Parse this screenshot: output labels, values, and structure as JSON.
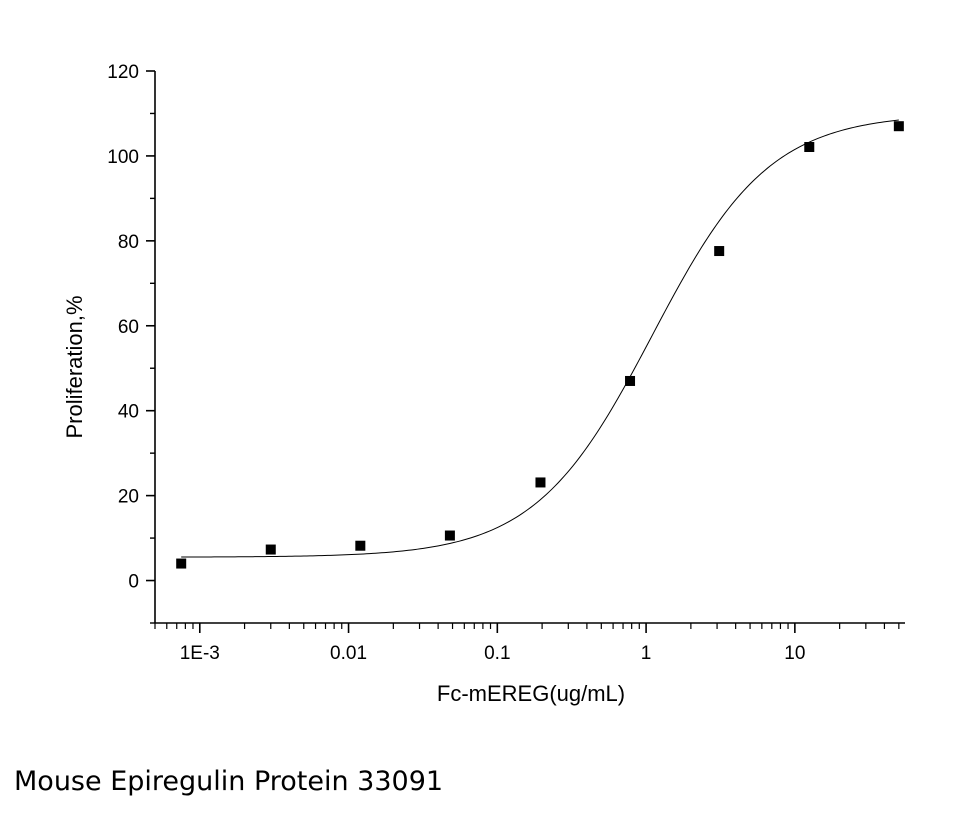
{
  "chart_data": {
    "type": "scatter",
    "title": "",
    "xlabel": "Fc-mEREG(ug/mL)",
    "ylabel": "Proliferation,%",
    "x_scale": "log",
    "xlim": [
      0.0005,
      55
    ],
    "ylim": [
      -10,
      120
    ],
    "x_ticks": [
      {
        "value": 0.001,
        "label": "1E-3"
      },
      {
        "value": 0.01,
        "label": "0.01"
      },
      {
        "value": 0.1,
        "label": "0.1"
      },
      {
        "value": 1,
        "label": "1"
      },
      {
        "value": 10,
        "label": "10"
      }
    ],
    "y_ticks": [
      {
        "value": 0,
        "label": "0"
      },
      {
        "value": 20,
        "label": "20"
      },
      {
        "value": 40,
        "label": "40"
      },
      {
        "value": 60,
        "label": "60"
      },
      {
        "value": 80,
        "label": "80"
      },
      {
        "value": 100,
        "label": "100"
      },
      {
        "value": 120,
        "label": "120"
      }
    ],
    "series": [
      {
        "x": [
          0.00075,
          0.003,
          0.012,
          0.048,
          0.195,
          0.78,
          3.1,
          12.5,
          50
        ],
        "y": [
          4,
          7.3,
          8.2,
          10.6,
          23.1,
          47,
          77.6,
          102.1,
          107
        ],
        "marker": "square",
        "color": "#000000"
      }
    ],
    "fit_curve": {
      "model": "four-parameter logistic",
      "bottom": 5.5,
      "top": 110,
      "ec50": 1.1,
      "hill": 1.1,
      "color": "#000000"
    },
    "grid": false,
    "legend": "none"
  },
  "caption": "Mouse Epiregulin Protein 33091"
}
